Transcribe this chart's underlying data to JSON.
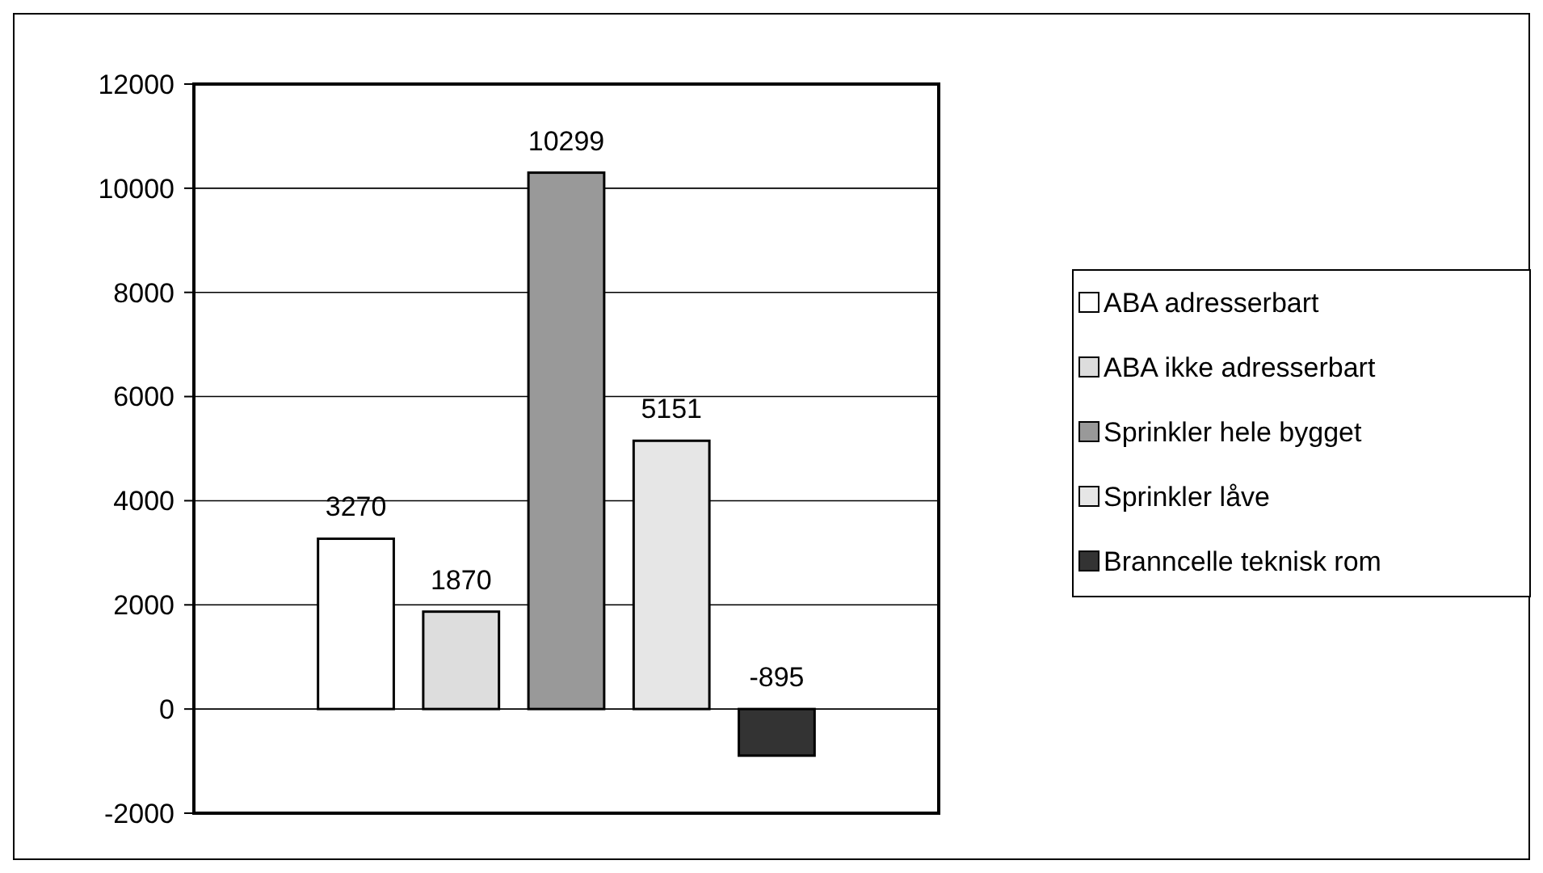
{
  "chart_data": {
    "type": "bar",
    "categories": [
      null
    ],
    "series": [
      {
        "name": "ABA adresserbart",
        "color": "#ffffff",
        "values": [
          3270
        ]
      },
      {
        "name": "ABA ikke adresserbart",
        "color": "#dddddd",
        "values": [
          1870
        ]
      },
      {
        "name": "Sprinkler hele bygget",
        "color": "#999999",
        "values": [
          10299
        ]
      },
      {
        "name": "Sprinkler låve",
        "color": "#e6e6e6",
        "values": [
          5151
        ]
      },
      {
        "name": "Branncelle teknisk rom",
        "color": "#333333",
        "values": [
          -895
        ]
      }
    ],
    "ylim": [
      -2000,
      12000
    ],
    "yticks": [
      -2000,
      0,
      2000,
      4000,
      6000,
      8000,
      10000,
      12000
    ],
    "grid": "y",
    "legend": "right",
    "data_labels": true
  }
}
